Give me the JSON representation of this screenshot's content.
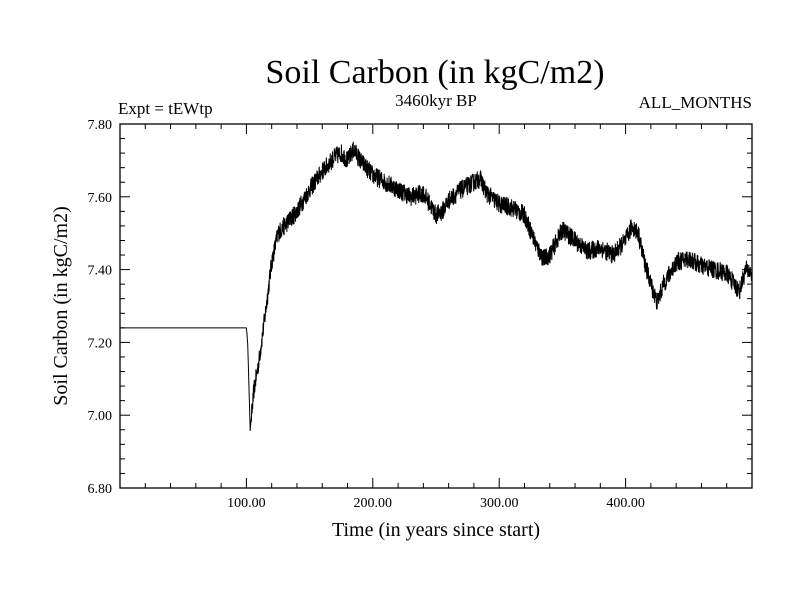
{
  "chart_data": {
    "type": "line",
    "title": "Soil Carbon (in kgC/m2)",
    "subtitle": "3460kyr BP",
    "experiment_label": "Expt = tEWtp",
    "period_label": "ALL_MONTHS",
    "xlabel": "Time (in years since start)",
    "ylabel": "Soil Carbon (in kgC/m2)",
    "xlim": [
      0,
      500
    ],
    "ylim": [
      6.8,
      7.8
    ],
    "x_ticks": [
      100,
      200,
      300,
      400
    ],
    "x_tick_labels": [
      "100.00",
      "200.00",
      "300.00",
      "400.00"
    ],
    "y_ticks": [
      6.8,
      7.0,
      7.2,
      7.4,
      7.6,
      7.8
    ],
    "y_tick_labels": [
      "6.80",
      "7.00",
      "7.20",
      "7.40",
      "7.60",
      "7.80"
    ],
    "grid": false,
    "series": [
      {
        "name": "Soil Carbon",
        "color": "#000000",
        "x": [
          0,
          100,
          101,
          103,
          106,
          110,
          115,
          120,
          125,
          130,
          140,
          150,
          160,
          170,
          175,
          180,
          185,
          190,
          200,
          210,
          220,
          230,
          240,
          250,
          255,
          260,
          270,
          280,
          285,
          290,
          300,
          310,
          320,
          330,
          335,
          340,
          350,
          360,
          370,
          380,
          390,
          400,
          405,
          410,
          415,
          420,
          425,
          430,
          440,
          450,
          460,
          470,
          480,
          490,
          495,
          500
        ],
        "y": [
          7.24,
          7.24,
          7.2,
          6.96,
          7.07,
          7.15,
          7.28,
          7.42,
          7.5,
          7.52,
          7.56,
          7.62,
          7.67,
          7.71,
          7.72,
          7.7,
          7.73,
          7.7,
          7.66,
          7.64,
          7.62,
          7.6,
          7.61,
          7.55,
          7.56,
          7.59,
          7.62,
          7.64,
          7.65,
          7.61,
          7.58,
          7.57,
          7.55,
          7.46,
          7.43,
          7.44,
          7.51,
          7.48,
          7.45,
          7.46,
          7.44,
          7.48,
          7.52,
          7.5,
          7.42,
          7.36,
          7.31,
          7.36,
          7.42,
          7.43,
          7.41,
          7.4,
          7.39,
          7.34,
          7.4,
          7.39
        ],
        "noise_amplitude": 0.025
      }
    ]
  }
}
